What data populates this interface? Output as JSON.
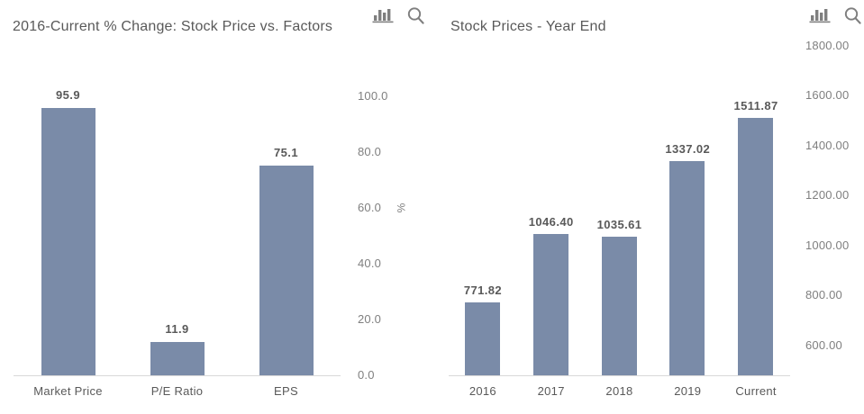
{
  "colors": {
    "background": "#FFFFFF",
    "bar": "#7A8BA8",
    "title_text": "#595959",
    "value_label_text": "#595959",
    "category_text": "#595959",
    "tick_text": "#7F7F7F",
    "icon": "#7F7F7F",
    "baseline": "#D9D9D9"
  },
  "chart_data": [
    {
      "type": "bar",
      "title": "2016-Current % Change: Stock Price vs. Factors",
      "categories": [
        "Market Price",
        "P/E Ratio",
        "EPS"
      ],
      "values": [
        95.9,
        11.9,
        75.1
      ],
      "value_labels": [
        "95.9",
        "11.9",
        "75.1"
      ],
      "xlabel": "",
      "ylabel": "%",
      "ylim": [
        0,
        100
      ],
      "yticks": [
        0,
        20,
        40,
        60,
        80,
        100
      ],
      "ytick_labels": [
        "0.0",
        "20.0",
        "40.0",
        "60.0",
        "80.0",
        "100.0"
      ],
      "axis_position": "right",
      "grid": false,
      "legend": "none",
      "bar_color": "#7A8BA8",
      "toolbar_icons": [
        "bar-chart-icon",
        "magnifier-icon"
      ]
    },
    {
      "type": "bar",
      "title": "Stock Prices - Year End",
      "categories": [
        "2016",
        "2017",
        "2018",
        "2019",
        "Current"
      ],
      "values": [
        771.82,
        1046.4,
        1035.61,
        1337.02,
        1511.87
      ],
      "value_labels": [
        "771.82",
        "1046.40",
        "1035.61",
        "1337.02",
        "1511.87"
      ],
      "xlabel": "",
      "ylabel": "",
      "ylim": [
        480,
        1800
      ],
      "yticks": [
        600,
        800,
        1000,
        1200,
        1400,
        1600,
        1800
      ],
      "ytick_labels": [
        "600.00",
        "800.00",
        "1000.00",
        "1200.00",
        "1400.00",
        "1600.00",
        "1800.00"
      ],
      "axis_position": "right",
      "grid": false,
      "legend": "none",
      "bar_color": "#7A8BA8",
      "toolbar_icons": [
        "bar-chart-icon",
        "magnifier-icon"
      ]
    }
  ]
}
